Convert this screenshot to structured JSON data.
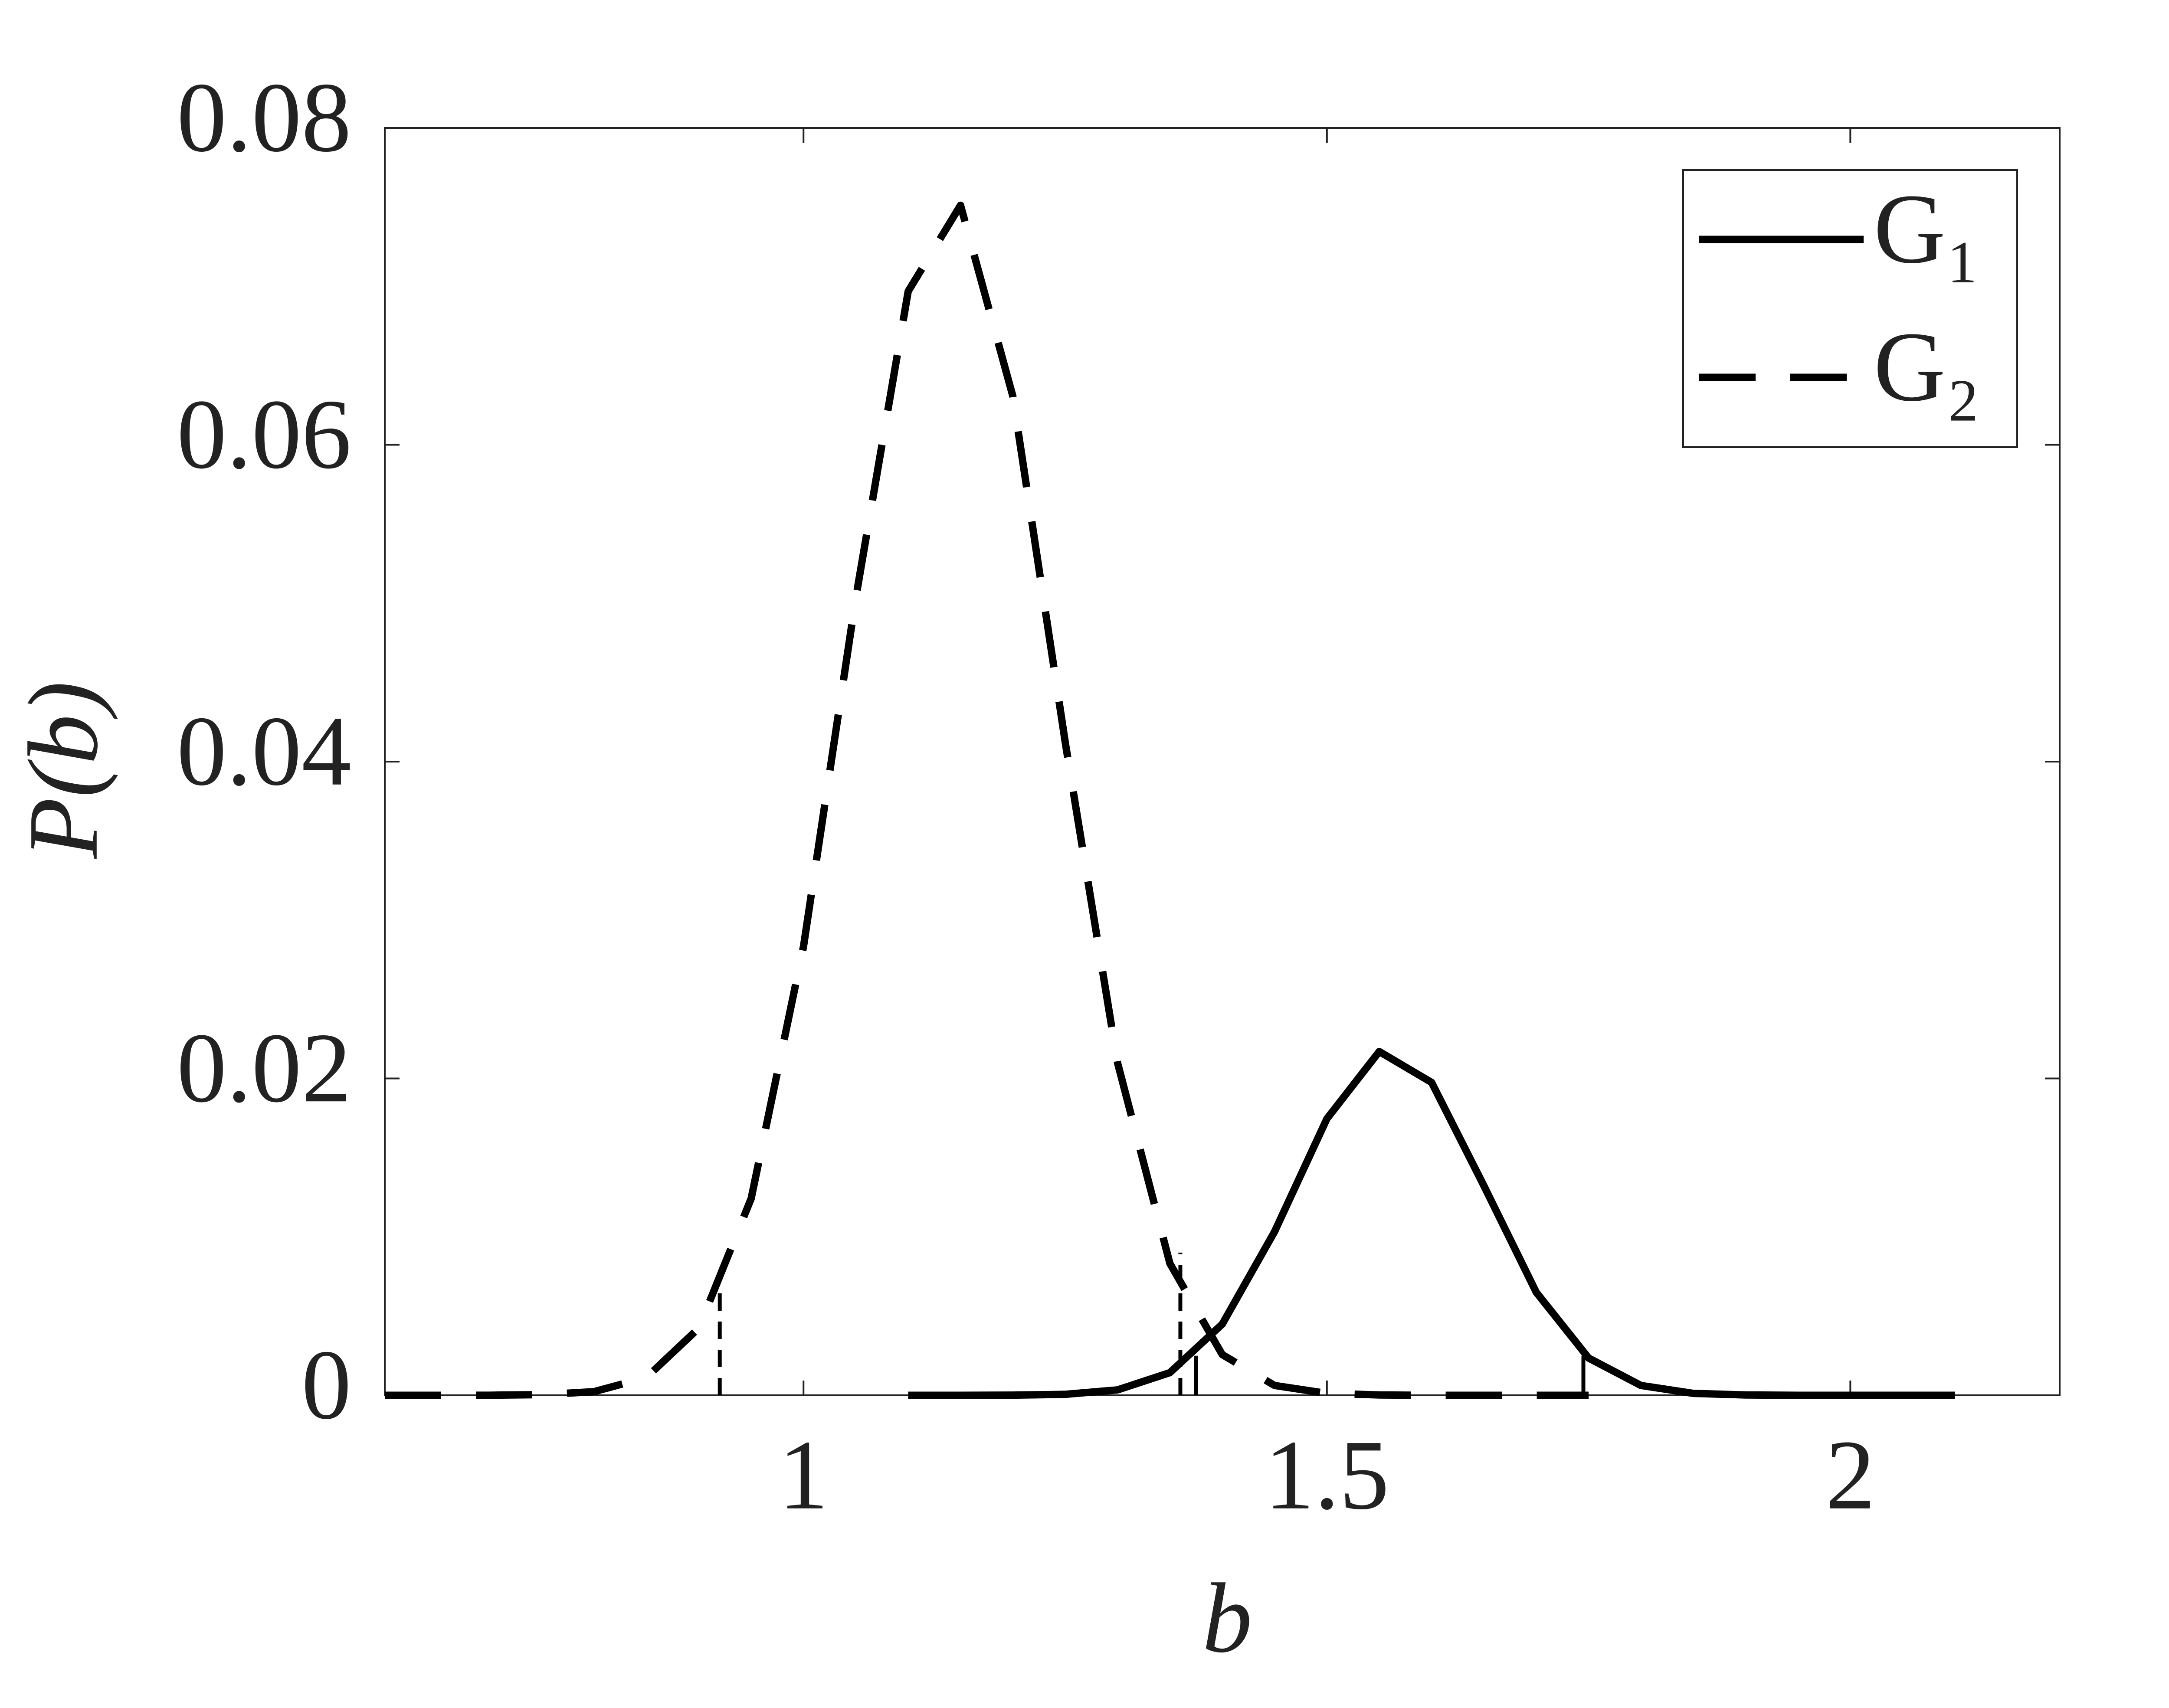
{
  "chart_data": {
    "type": "line",
    "x_label": "b",
    "y_label": "P(b)",
    "xlim": [
      0.6,
      2.2
    ],
    "xticks": [
      1,
      1.5,
      2
    ],
    "ylim": [
      0,
      0.08
    ],
    "yticks": [
      0,
      0.02,
      0.04,
      0.06,
      0.08
    ],
    "grid": false,
    "legend": "upper right",
    "series": [
      {
        "name": "G₁",
        "color": "#000000",
        "dash": false,
        "x": [
          1.1,
          1.15,
          1.2,
          1.25,
          1.3,
          1.35,
          1.4,
          1.45,
          1.5,
          1.55,
          1.6,
          1.65,
          1.7,
          1.75,
          1.8,
          1.85,
          1.9,
          1.95,
          2.0,
          2.05,
          2.1
        ],
        "values": [
          0,
          0,
          1e-05,
          6e-05,
          0.00034,
          0.00143,
          0.00449,
          0.01033,
          0.01746,
          0.0217,
          0.01975,
          0.01322,
          0.0065,
          0.00235,
          0.00062,
          0.00012,
          2e-05,
          0,
          0,
          0,
          0
        ]
      },
      {
        "name": "G₂",
        "color": "#000000",
        "dash": true,
        "x": [
          0.6,
          0.65,
          0.7,
          0.75,
          0.8,
          0.85,
          0.9,
          0.95,
          1.0,
          1.05,
          1.1,
          1.15,
          1.2,
          1.25,
          1.3,
          1.35,
          1.4,
          1.45,
          1.5,
          1.55,
          1.6,
          1.65,
          1.7,
          1.75
        ],
        "values": [
          0,
          0,
          5e-06,
          4e-05,
          0.00023,
          0.00113,
          0.00424,
          0.01242,
          0.02833,
          0.05035,
          0.06969,
          0.07512,
          0.06306,
          0.04123,
          0.02099,
          0.00832,
          0.00257,
          0.00062,
          0.00012,
          2e-05,
          0,
          0,
          0,
          0
        ]
      }
    ],
    "vlines": [
      {
        "x": 0.92,
        "y": 0.007,
        "dash": true
      },
      {
        "x": 1.36,
        "y": 0.009,
        "dash": true
      },
      {
        "x": 1.375,
        "y": 0.0025,
        "dash": false
      },
      {
        "x": 1.745,
        "y": 0.0025,
        "dash": false
      }
    ]
  }
}
